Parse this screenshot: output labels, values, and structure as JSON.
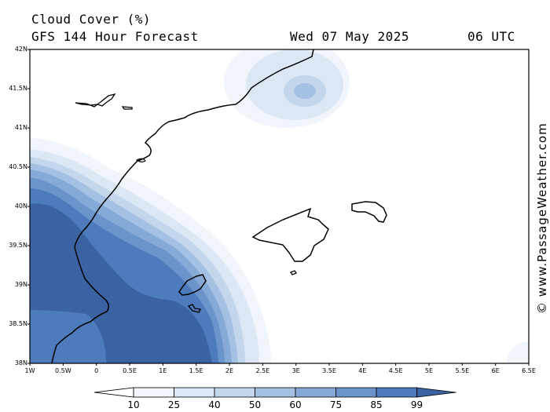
{
  "header": {
    "title": "Cloud Cover (%)",
    "subtitle": "GFS 144 Hour Forecast",
    "date": "Wed 07 May 2025",
    "time": "06 UTC"
  },
  "map": {
    "lat_labels": [
      "42N",
      "41.5N",
      "41N",
      "40.5N",
      "40N",
      "39.5N",
      "39N",
      "38.5N",
      "38N"
    ],
    "lon_labels": [
      "1W",
      "0.5W",
      "0",
      "0.5E",
      "1E",
      "1.5E",
      "2E",
      "2.5E",
      "3E",
      "3.5E",
      "4E",
      "4.5E",
      "5E",
      "5.5E",
      "6E",
      "6.5E"
    ],
    "lat_range": [
      38,
      42
    ],
    "lon_range": [
      -1,
      6.5
    ]
  },
  "legend": {
    "levels": [
      "10",
      "25",
      "40",
      "50",
      "60",
      "75",
      "85",
      "99"
    ],
    "colors": [
      "#ffffff",
      "#f0f5fb",
      "#dce7f4",
      "#c4d6ec",
      "#a4c0e2",
      "#86aad8",
      "#6b94cb",
      "#4d7bbc",
      "#3c63a1"
    ]
  },
  "watermark": "© www.PassageWeather.com"
}
